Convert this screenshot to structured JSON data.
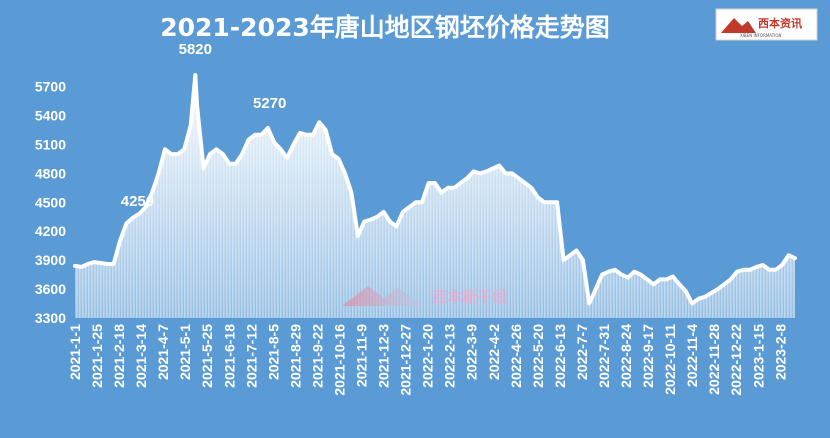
{
  "logo": {
    "text": "西本资讯",
    "sub": "XIBEN INFORMATION"
  },
  "watermark": {
    "text": "西本新干线"
  },
  "colors": {
    "background": "#5b9bd5",
    "line": "#ffffff",
    "area_fill": "#ffffff"
  },
  "chart_data": {
    "type": "area",
    "title": "2021-2023年唐山地区钢坯价格走势图",
    "xlabel": "",
    "ylabel": "",
    "ylim": [
      3300,
      5820
    ],
    "yticks": [
      3300,
      3600,
      3900,
      4200,
      4500,
      4800,
      5100,
      5400,
      5700
    ],
    "xticks": [
      "2021-1-1",
      "2021-1-25",
      "2021-2-18",
      "2021-3-14",
      "2021-4-7",
      "2021-5-1",
      "2021-5-25",
      "2021-6-18",
      "2021-7-12",
      "2021-8-5",
      "2021-8-29",
      "2021-9-22",
      "2021-10-16",
      "2021-11-9",
      "2021-12-3",
      "2021-12-27",
      "2022-1-20",
      "2022-2-13",
      "2022-3-9",
      "2022-4-2",
      "2022-4-26",
      "2022-5-20",
      "2022-6-13",
      "2022-7-7",
      "2022-7-31",
      "2022-8-24",
      "2022-9-17",
      "2022-10-11",
      "2022-11-4",
      "2022-11-28",
      "2022-12-22",
      "2023-1-15",
      "2023-2-8"
    ],
    "annotations": [
      {
        "x": "2021-3-10",
        "text": "4250"
      },
      {
        "x": "2021-5-12",
        "text": "5820"
      },
      {
        "x": "2021-8-1",
        "text": "5270"
      }
    ],
    "grid": false,
    "legend": "none",
    "series": [
      {
        "x": [
          "2021-1-1",
          "2021-1-8",
          "2021-1-15",
          "2021-1-22",
          "2021-1-29",
          "2021-2-5",
          "2021-2-12",
          "2021-2-19",
          "2021-2-26",
          "2021-3-5",
          "2021-3-12",
          "2021-3-19",
          "2021-3-26",
          "2021-4-2",
          "2021-4-9",
          "2021-4-16",
          "2021-4-23",
          "2021-4-30",
          "2021-5-7",
          "2021-5-12",
          "2021-5-14",
          "2021-5-21",
          "2021-5-28",
          "2021-6-4",
          "2021-6-11",
          "2021-6-18",
          "2021-6-25",
          "2021-7-2",
          "2021-7-9",
          "2021-7-16",
          "2021-7-23",
          "2021-7-30",
          "2021-8-6",
          "2021-8-13",
          "2021-8-20",
          "2021-8-27",
          "2021-9-3",
          "2021-9-10",
          "2021-9-17",
          "2021-9-24",
          "2021-10-1",
          "2021-10-8",
          "2021-10-15",
          "2021-10-22",
          "2021-10-29",
          "2021-11-5",
          "2021-11-12",
          "2021-11-19",
          "2021-11-26",
          "2021-12-3",
          "2021-12-10",
          "2021-12-17",
          "2021-12-24",
          "2021-12-31",
          "2022-1-7",
          "2022-1-14",
          "2022-1-21",
          "2022-1-28",
          "2022-2-4",
          "2022-2-11",
          "2022-2-18",
          "2022-2-25",
          "2022-3-4",
          "2022-3-11",
          "2022-3-18",
          "2022-3-25",
          "2022-4-1",
          "2022-4-8",
          "2022-4-15",
          "2022-4-22",
          "2022-4-29",
          "2022-5-6",
          "2022-5-13",
          "2022-5-20",
          "2022-5-27",
          "2022-6-3",
          "2022-6-10",
          "2022-6-17",
          "2022-6-24",
          "2022-7-1",
          "2022-7-8",
          "2022-7-15",
          "2022-7-22",
          "2022-7-29",
          "2022-8-5",
          "2022-8-12",
          "2022-8-19",
          "2022-8-26",
          "2022-9-2",
          "2022-9-9",
          "2022-9-16",
          "2022-9-23",
          "2022-9-30",
          "2022-10-7",
          "2022-10-14",
          "2022-10-21",
          "2022-10-28",
          "2022-11-4",
          "2022-11-11",
          "2022-11-18",
          "2022-11-25",
          "2022-12-2",
          "2022-12-9",
          "2022-12-16",
          "2022-12-23",
          "2022-12-30",
          "2023-1-6",
          "2023-1-13",
          "2023-1-20",
          "2023-1-27",
          "2023-2-3",
          "2023-2-10",
          "2023-2-17",
          "2023-2-24"
        ],
        "values": [
          3840,
          3830,
          3860,
          3880,
          3870,
          3860,
          3860,
          4100,
          4280,
          4340,
          4380,
          4450,
          4600,
          4800,
          5050,
          5000,
          5000,
          5050,
          5300,
          5820,
          5500,
          4850,
          5000,
          5050,
          5000,
          4900,
          4900,
          5000,
          5150,
          5200,
          5200,
          5270,
          5120,
          5050,
          4960,
          5100,
          5220,
          5200,
          5200,
          5330,
          5250,
          5000,
          4950,
          4800,
          4600,
          4150,
          4300,
          4320,
          4350,
          4400,
          4300,
          4250,
          4400,
          4450,
          4500,
          4500,
          4700,
          4700,
          4600,
          4650,
          4650,
          4700,
          4750,
          4820,
          4800,
          4820,
          4850,
          4880,
          4800,
          4800,
          4750,
          4700,
          4650,
          4550,
          4500,
          4500,
          4500,
          3900,
          3950,
          4000,
          3900,
          3450,
          3600,
          3750,
          3780,
          3800,
          3750,
          3720,
          3780,
          3750,
          3700,
          3650,
          3700,
          3700,
          3730,
          3650,
          3580,
          3450,
          3500,
          3520,
          3560,
          3600,
          3650,
          3700,
          3780,
          3800,
          3800,
          3830,
          3850,
          3800,
          3800,
          3850,
          3950,
          3920
        ]
      }
    ]
  }
}
